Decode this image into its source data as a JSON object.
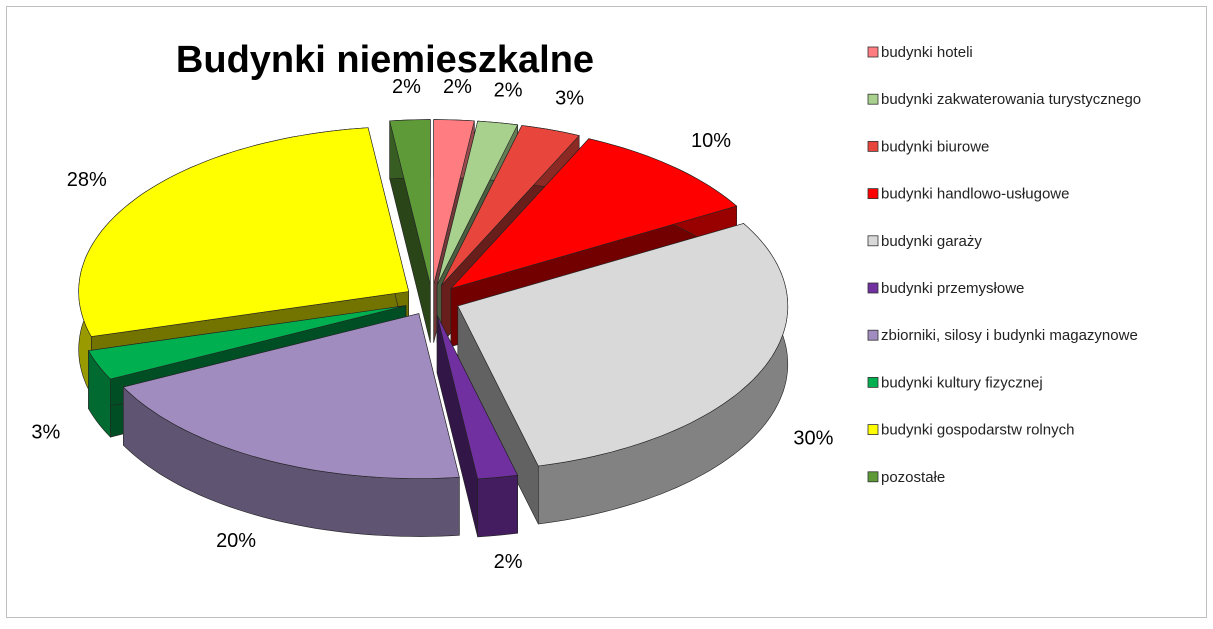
{
  "chart_data": {
    "type": "pie3d",
    "title": "Budynki niemieszkalne",
    "categories": [
      "budynki hoteli",
      "budynki zakwaterowania turystycznego",
      "budynki biurowe",
      "budynki handlowo-usługowe",
      "budynki garaży",
      "budynki przemysłowe",
      "zbiorniki, silosy i budynki magazynowe",
      "budynki kultury fizycznej",
      "budynki gospodarstw rolnych",
      "pozostałe"
    ],
    "values": [
      2,
      2,
      3,
      10,
      30,
      2,
      20,
      3,
      28,
      2
    ],
    "value_labels": [
      "2%",
      "2%",
      "3%",
      "10%",
      "30%",
      "2%",
      "20%",
      "3%",
      "28%",
      "2%"
    ],
    "colors": [
      "#ff7c80",
      "#a9d18e",
      "#e8453c",
      "#ff0000",
      "#d9d9d9",
      "#7030a0",
      "#a08cbf",
      "#00b050",
      "#ffff00",
      "#5e9b38"
    ],
    "legend": "right"
  }
}
